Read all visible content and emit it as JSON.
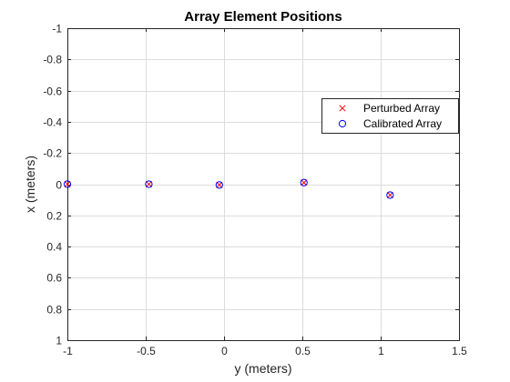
{
  "chart_data": {
    "type": "scatter",
    "title": "Array Element Positions",
    "xlabel": "y (meters)",
    "ylabel": "x (meters)",
    "xlim": [
      -1,
      1.5
    ],
    "ylim": [
      -1,
      1
    ],
    "y_axis_reversed": true,
    "grid": true,
    "legend_position": "top-right",
    "x_ticks": [
      -1,
      -0.5,
      0,
      0.5,
      1,
      1.5
    ],
    "x_tick_labels": [
      "-1",
      "-0.5",
      "0",
      "0.5",
      "1",
      "1.5"
    ],
    "y_ticks": [
      -1,
      -0.8,
      -0.6,
      -0.4,
      -0.2,
      0,
      0.2,
      0.4,
      0.6,
      0.8,
      1
    ],
    "y_tick_labels": [
      "-1",
      "-0.8",
      "-0.6",
      "-0.4",
      "-0.2",
      "0",
      "0.2",
      "0.4",
      "0.6",
      "0.8",
      "1"
    ],
    "series": [
      {
        "name": "Perturbed Array",
        "marker": "x",
        "color": "#ff0000",
        "x": [
          -1.0,
          -0.48,
          -0.03,
          0.51,
          1.06
        ],
        "y": [
          0.0,
          0.0,
          0.005,
          -0.01,
          0.07
        ]
      },
      {
        "name": "Calibrated Array",
        "marker": "circle",
        "color": "#0000ff",
        "x": [
          -1.0,
          -0.48,
          -0.03,
          0.51,
          1.06
        ],
        "y": [
          0.0,
          0.0,
          0.005,
          -0.01,
          0.07
        ]
      }
    ]
  }
}
